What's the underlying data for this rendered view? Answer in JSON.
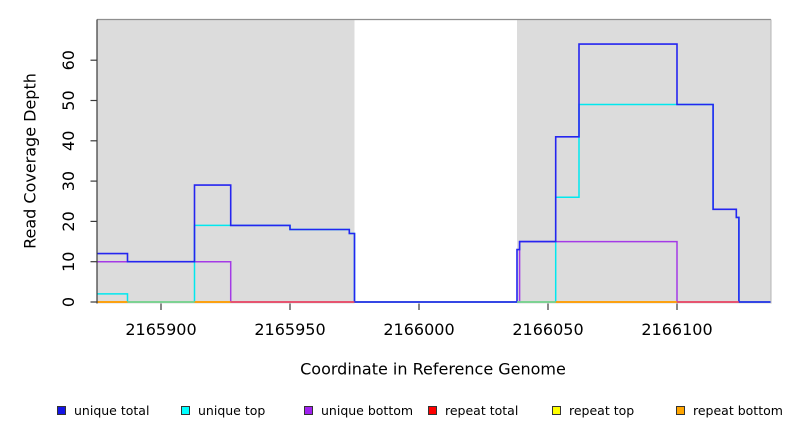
{
  "figure": {
    "xlabel": "Coordinate in Reference Genome",
    "ylabel": "Read Coverage Depth"
  },
  "chart_data": {
    "type": "line",
    "subtype": "step-coverage",
    "title": "",
    "xlabel": "Coordinate in Reference Genome",
    "ylabel": "Read Coverage Depth",
    "xlim": [
      2165875,
      2166137
    ],
    "ylim": [
      0,
      70
    ],
    "x_ticks": [
      2165900,
      2165950,
      2166000,
      2166050,
      2166100
    ],
    "y_ticks": [
      0,
      10,
      20,
      30,
      40,
      50,
      60
    ],
    "grid": false,
    "legend_position": "bottom-horizontal",
    "background_color": "#dcdcdc",
    "highlight_band": {
      "x0": 2165975,
      "x1": 2166038,
      "color": "#ffffff"
    },
    "draw_order": [
      4,
      3,
      5,
      2,
      1,
      0
    ],
    "series": [
      {
        "name": "unique total",
        "legend_color": "#1414e6",
        "line_color": "#2525f0",
        "line_width": 1.6,
        "steps": [
          [
            2165875,
            12
          ],
          [
            2165887,
            10
          ],
          [
            2165913,
            29
          ],
          [
            2165927,
            19
          ],
          [
            2165950,
            18
          ],
          [
            2165973,
            17
          ],
          [
            2165975,
            0
          ],
          [
            2166038,
            13
          ],
          [
            2166039,
            15
          ],
          [
            2166053,
            41
          ],
          [
            2166062,
            64
          ],
          [
            2166100,
            49
          ],
          [
            2166114,
            23
          ],
          [
            2166123,
            21
          ],
          [
            2166124,
            0
          ]
        ]
      },
      {
        "name": "unique top",
        "legend_color": "#00ffff",
        "line_color": "#00e8ee",
        "line_width": 1.5,
        "steps": [
          [
            2165875,
            2
          ],
          [
            2165887,
            0
          ],
          [
            2165913,
            19
          ],
          [
            2165950,
            18
          ],
          [
            2165973,
            17
          ],
          [
            2165975,
            0
          ],
          [
            2166053,
            26
          ],
          [
            2166062,
            49
          ],
          [
            2166114,
            23
          ],
          [
            2166123,
            21
          ],
          [
            2166124,
            0
          ]
        ]
      },
      {
        "name": "unique bottom",
        "legend_color": "#a020f0",
        "line_color": "#a43ae6",
        "line_width": 1.5,
        "steps": [
          [
            2165875,
            10
          ],
          [
            2165927,
            0
          ],
          [
            2166039,
            15
          ],
          [
            2166100,
            0
          ]
        ]
      },
      {
        "name": "repeat total",
        "legend_color": "#ff0000",
        "line_color": "#ef4b63",
        "line_width": 1.2,
        "steps": [
          [
            2165875,
            0
          ]
        ]
      },
      {
        "name": "repeat top",
        "legend_color": "#ffff00",
        "line_color": "#e8e800",
        "line_width": 1.2,
        "steps": [
          [
            2165875,
            0
          ]
        ]
      },
      {
        "name": "repeat bottom",
        "legend_color": "#ffa500",
        "line_color": "#ff9d00",
        "line_width": 1.5,
        "steps": [
          [
            2165875,
            0
          ]
        ]
      }
    ],
    "baseline_overlaps": [
      {
        "x0": 2165875,
        "x1": 2165887,
        "color": "#ff9d00",
        "top_series": "repeat bottom"
      },
      {
        "x0": 2165887,
        "x1": 2165913,
        "color": "#7fd490",
        "top_series": "repeat top over unique top"
      },
      {
        "x0": 2165913,
        "x1": 2165927,
        "color": "#ff9d00",
        "top_series": "repeat bottom"
      },
      {
        "x0": 2165927,
        "x1": 2165975,
        "color": "#ef4b63",
        "top_series": "repeat total"
      },
      {
        "x0": 2166038,
        "x1": 2166053,
        "color": "#7fd490",
        "top_series": "repeat top over unique top"
      },
      {
        "x0": 2166053,
        "x1": 2166100,
        "color": "#ff9d00",
        "top_series": "repeat bottom"
      },
      {
        "x0": 2166100,
        "x1": 2166124,
        "color": "#ef4b63",
        "top_series": "repeat total"
      }
    ]
  },
  "legend": {
    "items": [
      {
        "label": "unique total",
        "fill": "#1414e6",
        "border": "#333333",
        "x": 57
      },
      {
        "label": "unique top",
        "fill": "#00ffff",
        "border": "#333333",
        "x": 181
      },
      {
        "label": "unique bottom",
        "fill": "#a020f0",
        "border": "#333333",
        "x": 304
      },
      {
        "label": "repeat total",
        "fill": "#ff0000",
        "border": "#333333",
        "x": 428
      },
      {
        "label": "repeat top",
        "fill": "#ffff00",
        "border": "#333333",
        "x": 552
      },
      {
        "label": "repeat bottom",
        "fill": "#ffa500",
        "border": "#333333",
        "x": 676
      }
    ]
  }
}
